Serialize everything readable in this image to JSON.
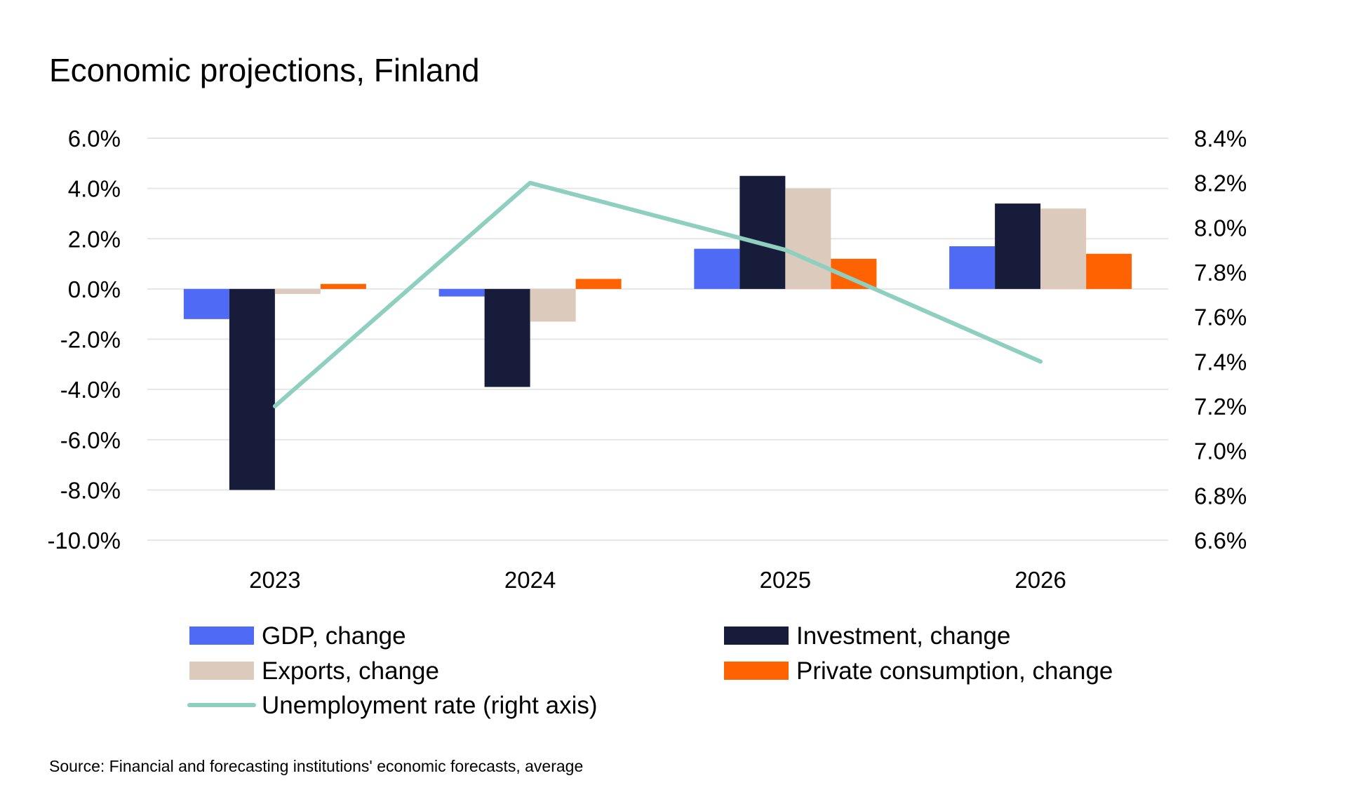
{
  "chart_data": {
    "type": "bar",
    "title": "Economic projections, Finland",
    "categories": [
      "2023",
      "2024",
      "2025",
      "2026"
    ],
    "xlabel": "",
    "ylabel": "",
    "ylim": [
      -10,
      6
    ],
    "y_ticks": [
      "6.0%",
      "4.0%",
      "2.0%",
      "0.0%",
      "-2.0%",
      "-4.0%",
      "-6.0%",
      "-8.0%",
      "-10.0%"
    ],
    "y2lim": [
      6.6,
      8.4
    ],
    "y2_ticks": [
      "8.4%",
      "8.2%",
      "8.0%",
      "7.8%",
      "7.6%",
      "7.4%",
      "7.2%",
      "7.0%",
      "6.8%",
      "6.6%"
    ],
    "grid": true,
    "legend_position": "bottom",
    "series": [
      {
        "name": "GDP, change",
        "type": "bar",
        "color": "#4f6bf5",
        "values": [
          -1.2,
          -0.3,
          1.6,
          1.7
        ]
      },
      {
        "name": "Investment, change",
        "type": "bar",
        "color": "#161c3a",
        "values": [
          -8.0,
          -3.9,
          4.5,
          3.4
        ]
      },
      {
        "name": "Exports, change",
        "type": "bar",
        "color": "#dccbbc",
        "values": [
          -0.2,
          -1.3,
          4.0,
          3.2
        ]
      },
      {
        "name": "Private consumption, change",
        "type": "bar",
        "color": "#ff6200",
        "values": [
          0.2,
          0.4,
          1.2,
          1.4
        ]
      },
      {
        "name": "Unemployment rate (right axis)",
        "type": "line",
        "axis": "right",
        "color": "#8fcfbf",
        "values": [
          7.2,
          8.2,
          7.9,
          7.4
        ]
      }
    ],
    "source": "Source: Financial and forecasting institutions' economic forecasts, average"
  }
}
